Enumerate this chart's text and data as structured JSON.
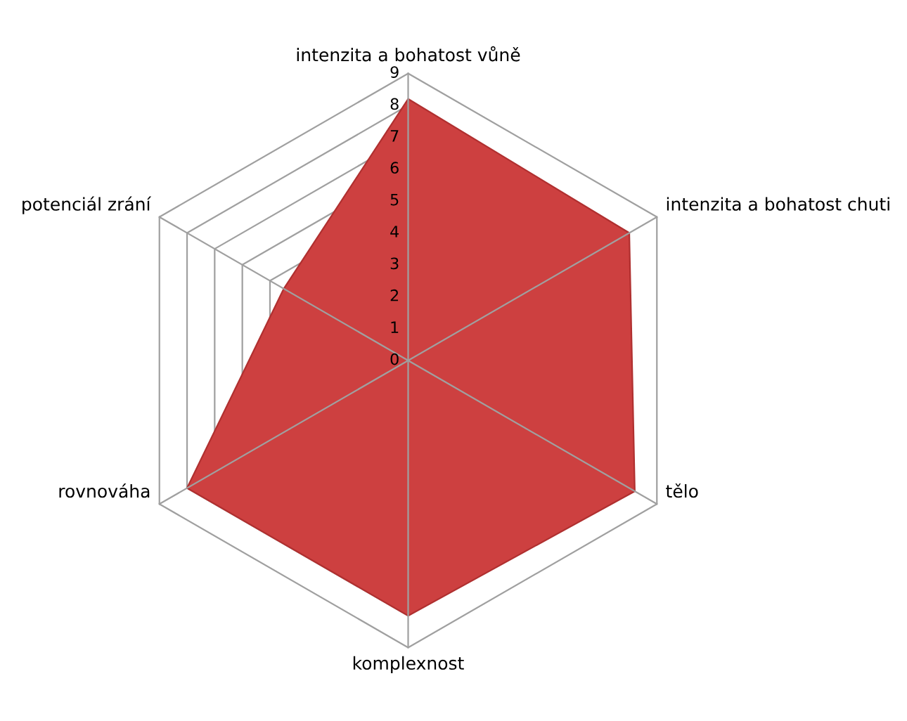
{
  "chart_data": {
    "type": "radar",
    "categories": [
      "intenzita a bohatost vůně",
      "intenzita a bohatost chuti",
      "tělo",
      "komplexnost",
      "rovnováha",
      "potenciál zrání"
    ],
    "series": [
      {
        "color": "#cd4040",
        "values": [
          8.2,
          8,
          8.2,
          8,
          8,
          4.5
        ]
      }
    ],
    "ylim": [
      0,
      9
    ],
    "yticks": [
      0,
      1,
      2,
      3,
      4,
      5,
      6,
      7,
      8,
      9
    ],
    "grid": true
  }
}
